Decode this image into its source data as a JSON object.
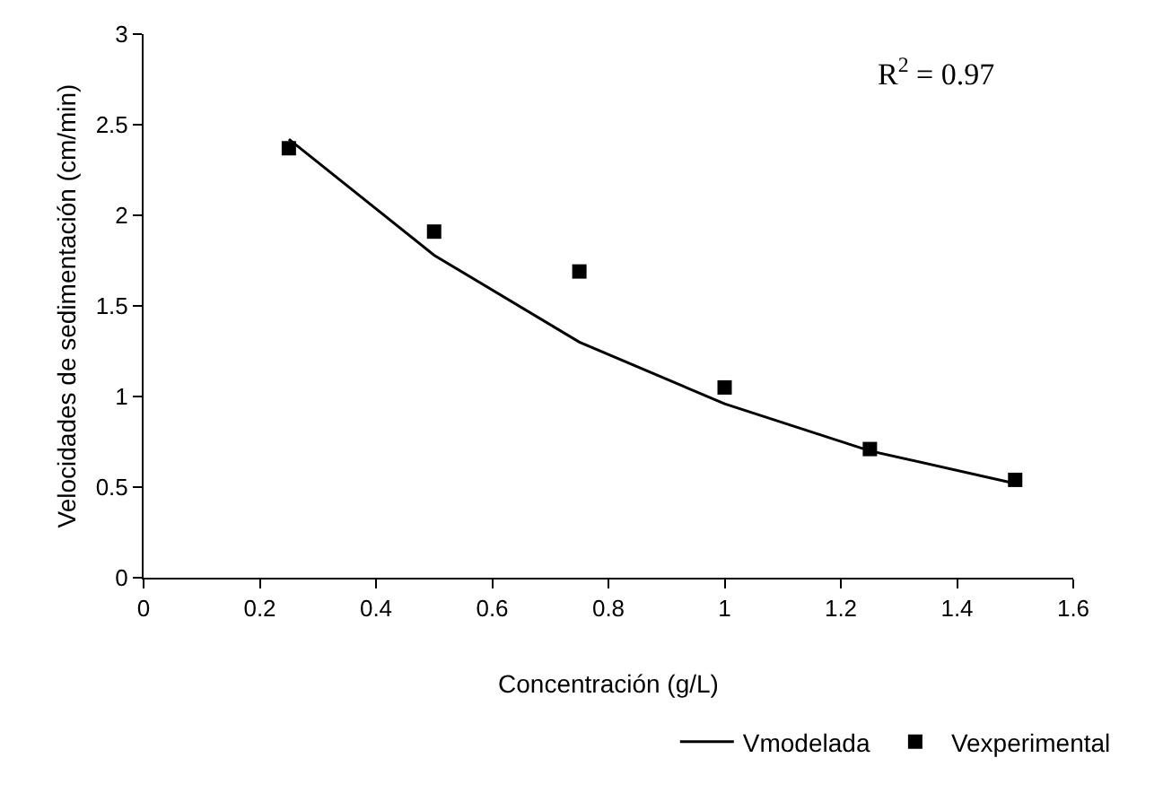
{
  "chart_data": {
    "type": "line",
    "xlabel": "Concentración (g/L)",
    "ylabel": "Velocidades de sedimentación (cm/min)",
    "annotations": [
      "R$^{2}$ = 0.97"
    ],
    "x": [
      0.25,
      0.5,
      0.75,
      1.0,
      1.25,
      1.5
    ],
    "series": [
      {
        "name": "Vmodelada",
        "color": "#000000",
        "marker": "none",
        "line_style": "solid",
        "values": [
          2.42,
          1.78,
          1.3,
          0.96,
          0.7,
          0.52
        ]
      },
      {
        "name": "Vexperimental",
        "type": "scatter",
        "color": "#000000",
        "marker": "square",
        "values": [
          2.37,
          1.91,
          1.69,
          1.05,
          0.71,
          0.54
        ]
      }
    ],
    "xlim": [
      0,
      1.6
    ],
    "xticks": [
      0,
      0.2,
      0.4,
      0.6,
      0.8,
      1,
      1.2,
      1.4,
      1.6
    ],
    "ylim": [
      0,
      3
    ],
    "yticks": [
      0,
      0.5,
      1,
      1.5,
      2,
      2.5,
      3
    ],
    "grid": false,
    "legend": "bottom right"
  }
}
